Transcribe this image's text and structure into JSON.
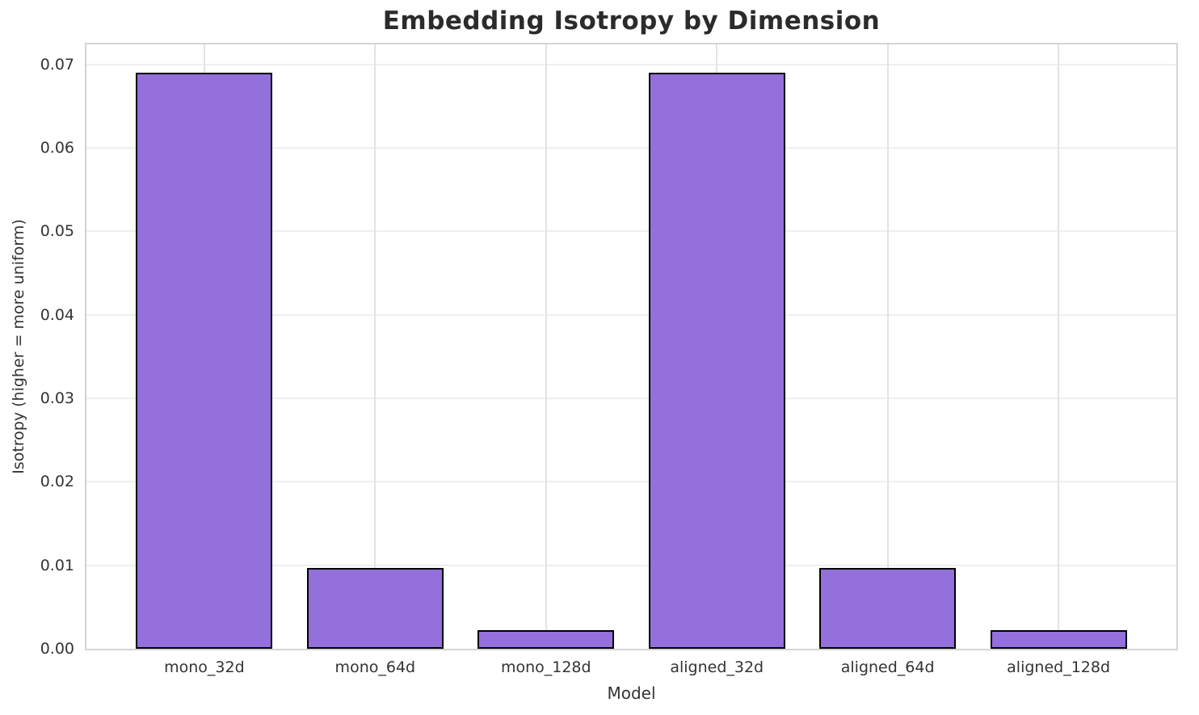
{
  "chart_data": {
    "type": "bar",
    "title": "Embedding Isotropy by Dimension",
    "xlabel": "Model",
    "ylabel": "Isotropy (higher = more uniform)",
    "categories": [
      "mono_32d",
      "mono_64d",
      "mono_128d",
      "aligned_32d",
      "aligned_64d",
      "aligned_128d"
    ],
    "values": [
      0.069,
      0.0097,
      0.0022,
      0.069,
      0.0097,
      0.0022
    ],
    "ylim": [
      0,
      0.0724
    ],
    "yticks": [
      0,
      0.01,
      0.02,
      0.03,
      0.04,
      0.05,
      0.06,
      0.07
    ],
    "ytick_labels": [
      "0.00",
      "0.01",
      "0.02",
      "0.03",
      "0.04",
      "0.05",
      "0.06",
      "0.07"
    ],
    "xlim_units": [
      -0.69,
      5.69
    ],
    "bar_width_units": 0.8,
    "legend": "none",
    "grid": "on",
    "bar_color": "#9370DB",
    "bar_edge_color": "#000000",
    "grid_color": "#efefef",
    "spine_color": "#d4d4d4",
    "text_color": "#333333",
    "title_color": "#2b2b2b",
    "background_color": "#ffffff"
  }
}
